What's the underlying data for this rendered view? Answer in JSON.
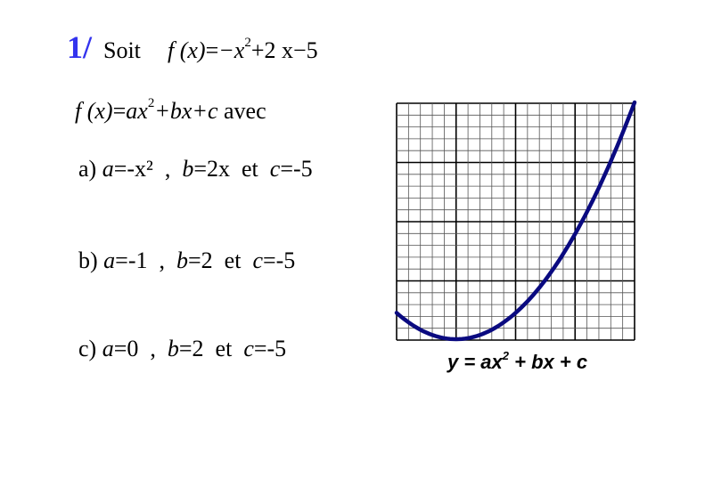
{
  "exercise": {
    "number": "1/",
    "intro": "Soit",
    "function": {
      "lhs": "f (x)",
      "eq": "=",
      "t1": "−x",
      "exp": "2",
      "t2": "+2 x−5"
    },
    "general": {
      "lhs": "f (x)",
      "eq": "=",
      "t1": "ax",
      "exp": "2",
      "t2": "+bx+c",
      "tail": "avec"
    }
  },
  "options": [
    {
      "label": "a)",
      "a_var": "a",
      "a_val": "=-x²",
      "sep": ",",
      "b_var": "b",
      "b_val": "=2x",
      "et": "et",
      "c_var": "c",
      "c_val": "=-5"
    },
    {
      "label": "b)",
      "a_var": "a",
      "a_val": "=-1",
      "sep": ",",
      "b_var": "b",
      "b_val": "=2",
      "et": "et",
      "c_var": "c",
      "c_val": "=-5"
    },
    {
      "label": "c)",
      "a_var": "a",
      "a_val": "=0",
      "sep": ",",
      "b_var": "b",
      "b_val": "=2",
      "et": "et",
      "c_var": "c",
      "c_val": "=-5"
    }
  ],
  "graph": {
    "caption": {
      "pre": "y = ax",
      "exp": "2",
      "post": " + bx + c"
    },
    "curve_color": "#0a0a80",
    "grid_major": 4,
    "grid_minor": 5
  }
}
